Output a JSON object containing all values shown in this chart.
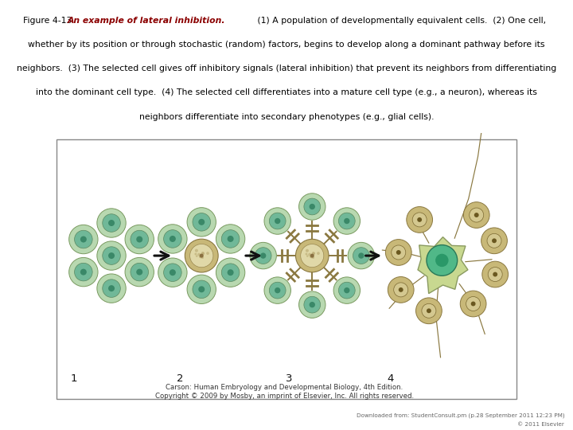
{
  "title_prefix": "Figure 4-13 ",
  "title_bold": "An example of lateral inhibition.",
  "title_color_bold": "#8B0000",
  "title_color_normal": "#000000",
  "line1": " (1) A population of developmentally equivalent cells.  (2) One cell,",
  "line2": "whether by its position or through stochastic (random) factors, begins to develop along a dominant pathway before its",
  "line3": "neighbors.  (3) The selected cell gives off inhibitory signals (lateral inhibition) that prevent its neighbors from differentiating",
  "line4": "into the dominant cell type.  (4) The selected cell differentiates into a mature cell type (e.g., a neuron), whereas its",
  "line5": "neighbors differentiate into secondary phenotypes (e.g., glial cells).",
  "footer_line1": "Carson: Human Embryology and Developmental Biology, 4th Edition.",
  "footer_line2": "Copyright © 2009 by Mosby, an imprint of Elsevier, Inc. All rights reserved.",
  "bottom_line1": "Downloaded from: StudentConsult.pm (p.28 September 2011 12:23 PM)",
  "bottom_line2": "© 2011 Elsevier",
  "bg_color": "#ffffff",
  "cell_outer_green": "#b8d8b0",
  "cell_inner_green": "#70b898",
  "cell_center_dot": "#3a8868",
  "cell_outer_tan": "#c8b878",
  "cell_inner_tan": "#d4c890",
  "cell_spotted_bg": "#e0d8a8",
  "arrow_color": "#111111",
  "label_color": "#111111",
  "neuron_body_color": "#c8d890",
  "neuron_nucleus_color": "#50b888",
  "dendrite_color": "#8a7840",
  "box_edge_color": "#888888"
}
